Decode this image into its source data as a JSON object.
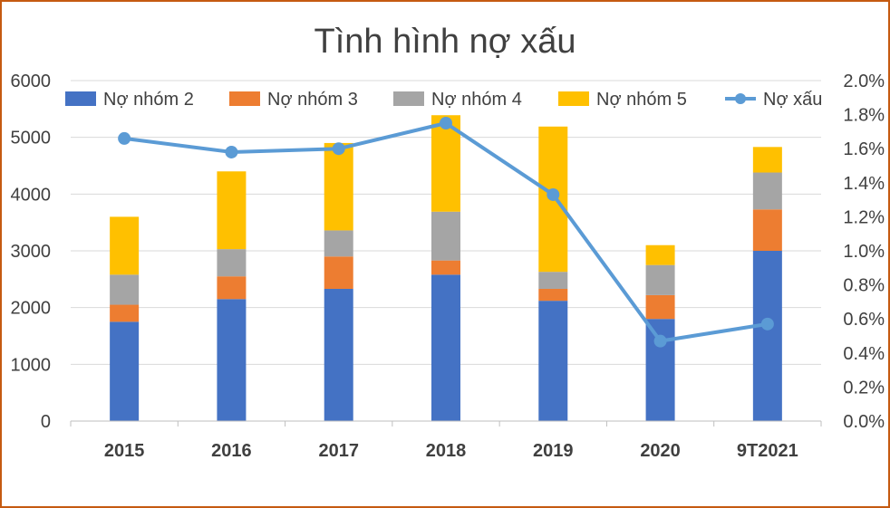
{
  "chart_data": {
    "type": "bar",
    "title": "Tình hình nợ xấu",
    "categories": [
      "2015",
      "2016",
      "2017",
      "2018",
      "2019",
      "2020",
      "9T2021"
    ],
    "series": [
      {
        "name": "Nợ nhóm 2",
        "kind": "stacked-bar",
        "axis": "left",
        "color": "#4472c4",
        "values": [
          1750,
          2150,
          2330,
          2580,
          2120,
          1800,
          3000
        ]
      },
      {
        "name": "Nợ nhóm 3",
        "kind": "stacked-bar",
        "axis": "left",
        "color": "#ed7d31",
        "values": [
          300,
          400,
          570,
          250,
          210,
          420,
          730
        ]
      },
      {
        "name": "Nợ nhóm 4",
        "kind": "stacked-bar",
        "axis": "left",
        "color": "#a5a5a5",
        "values": [
          530,
          480,
          460,
          860,
          300,
          530,
          650
        ]
      },
      {
        "name": "Nợ nhóm 5",
        "kind": "stacked-bar",
        "axis": "left",
        "color": "#ffc000",
        "values": [
          1020,
          1370,
          1540,
          1700,
          2560,
          350,
          450
        ]
      },
      {
        "name": "Nợ xấu",
        "kind": "line",
        "axis": "right",
        "color": "#5b9bd5",
        "values": [
          1.66,
          1.58,
          1.6,
          1.75,
          1.33,
          0.47,
          0.57
        ]
      }
    ],
    "ylim": [
      0,
      6000
    ],
    "y_ticks": [
      "0",
      "1000",
      "2000",
      "3000",
      "4000",
      "5000",
      "6000"
    ],
    "y2lim": [
      0,
      2.0
    ],
    "y2_ticks": [
      "0.0%",
      "0.2%",
      "0.4%",
      "0.6%",
      "0.8%",
      "1.0%",
      "1.2%",
      "1.4%",
      "1.6%",
      "1.8%",
      "2.0%"
    ],
    "grid": true,
    "legend_position": "top"
  }
}
